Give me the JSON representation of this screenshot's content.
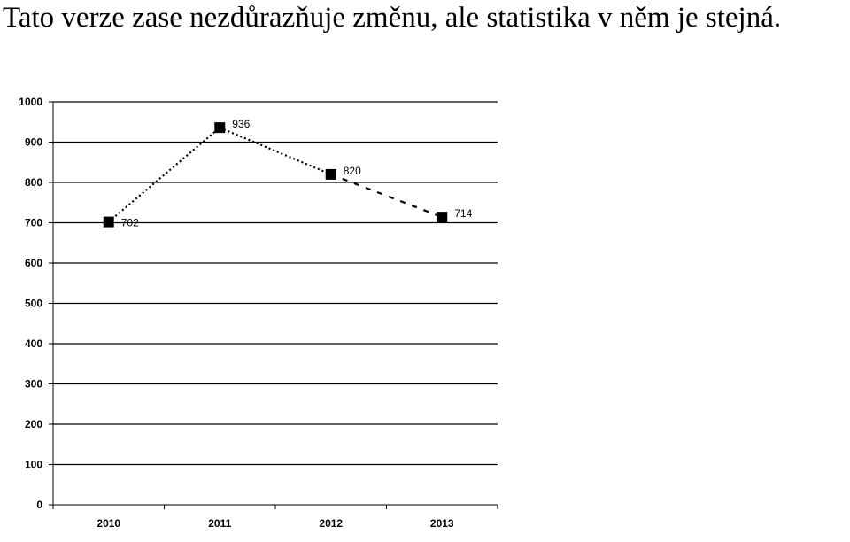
{
  "caption": "Tato verze zase nezdůrazňuje změnu, ale statistika v něm je stejná.",
  "chart_data": {
    "type": "line",
    "title": "",
    "xlabel": "",
    "ylabel": "",
    "categories": [
      "2010",
      "2011",
      "2012",
      "2013"
    ],
    "series": [
      {
        "values": [
          702,
          936,
          820,
          714
        ],
        "data_labels": [
          "702",
          "936",
          "820",
          "714"
        ]
      }
    ],
    "ylim": [
      0,
      1000
    ],
    "yticks": [
      0,
      100,
      200,
      300,
      400,
      500,
      600,
      700,
      800,
      900,
      1000
    ],
    "grid": "horizontal",
    "legend": "none",
    "line_style": "dotted, last segment dashed",
    "marker": "square",
    "colors": {
      "line": "#000000",
      "grid": "#000000",
      "marker": "#000000"
    }
  }
}
